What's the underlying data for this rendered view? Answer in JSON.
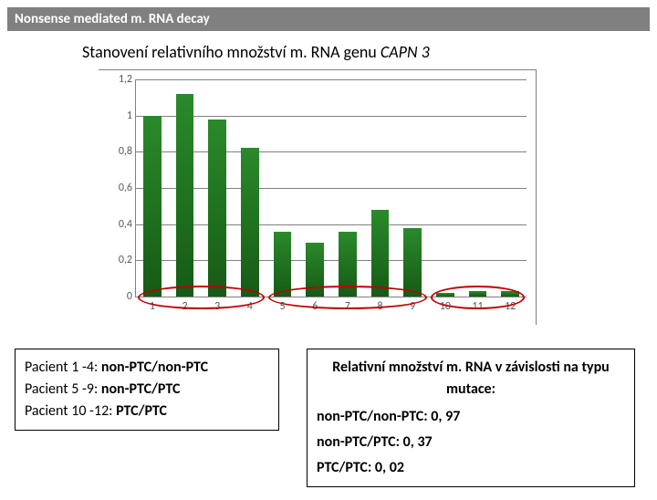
{
  "header": {
    "title": "Nonsense mediated m. RNA decay"
  },
  "subtitle": {
    "prefix": "Stanovení relativního množství m. RNA genu ",
    "gene": "CAPN 3"
  },
  "chart": {
    "type": "bar",
    "categories": [
      "1",
      "2",
      "3",
      "4",
      "5",
      "6",
      "7",
      "8",
      "9",
      "10",
      "11",
      "12"
    ],
    "values": [
      1.0,
      1.12,
      0.98,
      0.82,
      0.36,
      0.3,
      0.36,
      0.48,
      0.38,
      0.02,
      0.03,
      0.03
    ],
    "bar_colors": [
      "#2a8a2a",
      "#2a8a2a",
      "#2a8a2a",
      "#2a8a2a",
      "#2a8a2a",
      "#2a8a2a",
      "#2a8a2a",
      "#2a8a2a",
      "#2a8a2a",
      "#2a8a2a",
      "#2a8a2a",
      "#2a8a2a"
    ],
    "ylim": [
      0,
      1.2
    ],
    "ytick_step": 0.2,
    "ytick_labels": [
      "0",
      "0,2",
      "0,4",
      "0,6",
      "0,8",
      "1",
      "1,2"
    ],
    "bar_width": 0.55,
    "background_color": "#ffffff",
    "grid_color": "#808080",
    "axis_font_size": 12,
    "axis_font_color": "#595959",
    "groups": [
      {
        "start": 1,
        "end": 4,
        "stroke": "#c00000"
      },
      {
        "start": 5,
        "end": 9,
        "stroke": "#c00000"
      },
      {
        "start": 10,
        "end": 12,
        "stroke": "#c00000"
      }
    ]
  },
  "left_box": {
    "line1_prefix": "Pacient 1 -4: ",
    "line1_bold": "non-PTC/non-PTC",
    "line2_prefix": "Pacient 5 -9: ",
    "line2_bold": "non-PTC/PTC",
    "line3_prefix": "Pacient 10 -12: ",
    "line3_bold": "PTC/PTC"
  },
  "right_box": {
    "title": "Relativní množství m. RNA v závislosti na typu mutace:",
    "line1": "non-PTC/non-PTC: 0, 97",
    "line2": "non-PTC/PTC: 0, 37",
    "line3": "PTC/PTC: 0, 02"
  }
}
